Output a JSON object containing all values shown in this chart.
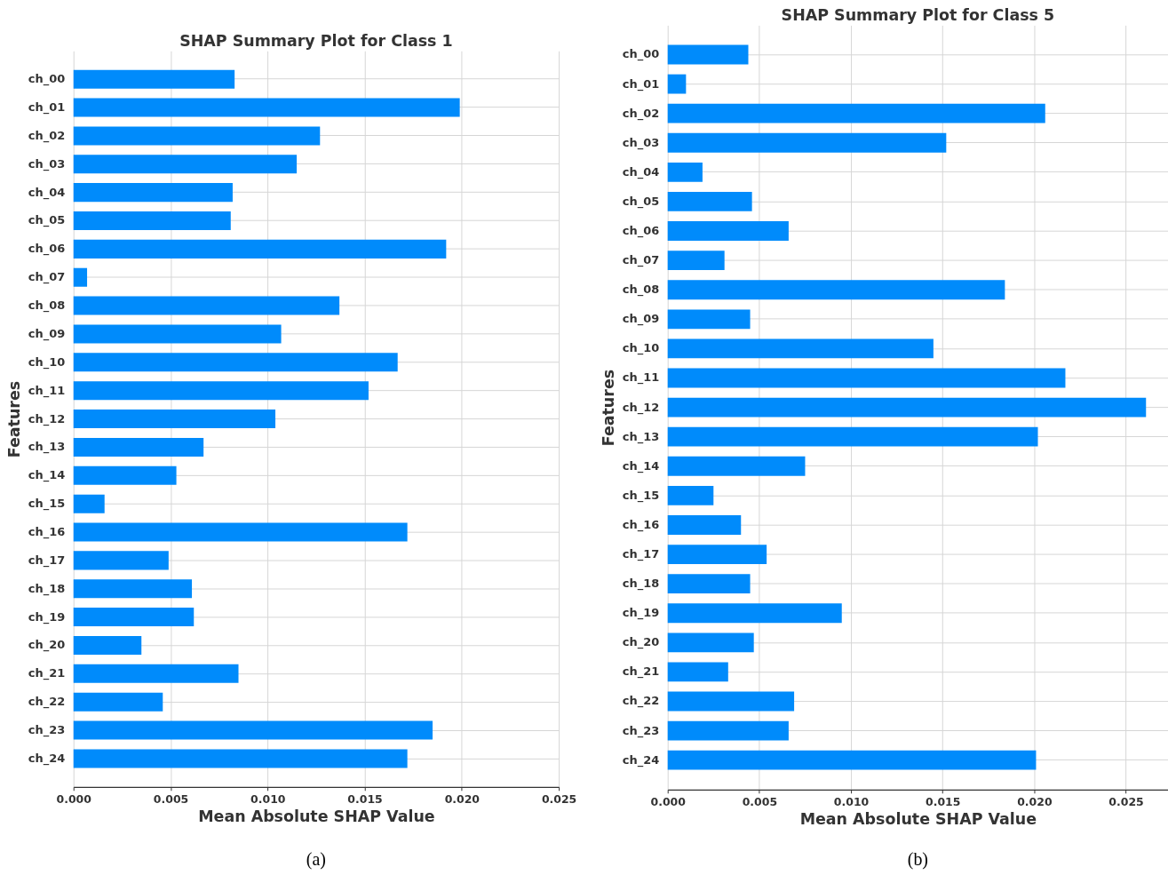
{
  "chart_data": [
    {
      "type": "bar",
      "orientation": "horizontal",
      "title": "SHAP Summary Plot for Class 1",
      "xlabel": "Mean Absolute SHAP Value",
      "ylabel": "Features",
      "categories": [
        "ch_00",
        "ch_01",
        "ch_02",
        "ch_03",
        "ch_04",
        "ch_05",
        "ch_06",
        "ch_07",
        "ch_08",
        "ch_09",
        "ch_10",
        "ch_11",
        "ch_12",
        "ch_13",
        "ch_14",
        "ch_15",
        "ch_16",
        "ch_17",
        "ch_18",
        "ch_19",
        "ch_20",
        "ch_21",
        "ch_22",
        "ch_23",
        "ch_24"
      ],
      "values": [
        0.0083,
        0.0199,
        0.0127,
        0.0115,
        0.0082,
        0.0081,
        0.0192,
        0.0007,
        0.0137,
        0.0107,
        0.0167,
        0.0152,
        0.0104,
        0.0067,
        0.0053,
        0.0016,
        0.0172,
        0.0049,
        0.0061,
        0.0062,
        0.0035,
        0.0085,
        0.0046,
        0.0185,
        0.0172
      ],
      "color": "#008bfb",
      "xlim": [
        0,
        0.025
      ],
      "xticks": [
        {
          "value": 0,
          "label": "0.000"
        },
        0.005,
        {
          "value": 0.01,
          "label": "0.010"
        },
        0.015,
        {
          "value": 0.02,
          "label": "0.020"
        },
        0.025
      ],
      "grid": true,
      "annotations": [
        "(a)"
      ]
    },
    {
      "type": "bar",
      "orientation": "horizontal",
      "title": "SHAP Summary Plot for Class 5",
      "xlabel": "Mean Absolute SHAP Value",
      "ylabel": "Features",
      "categories": [
        "ch_00",
        "ch_01",
        "ch_02",
        "ch_03",
        "ch_04",
        "ch_05",
        "ch_06",
        "ch_07",
        "ch_08",
        "ch_09",
        "ch_10",
        "ch_11",
        "ch_12",
        "ch_13",
        "ch_14",
        "ch_15",
        "ch_16",
        "ch_17",
        "ch_18",
        "ch_19",
        "ch_20",
        "ch_21",
        "ch_22",
        "ch_23",
        "ch_24"
      ],
      "values": [
        0.0044,
        0.001,
        0.0206,
        0.0152,
        0.0019,
        0.0046,
        0.0066,
        0.0031,
        0.0184,
        0.0045,
        0.0145,
        0.0217,
        0.0261,
        0.0202,
        0.0075,
        0.0025,
        0.004,
        0.0054,
        0.0045,
        0.0095,
        0.0047,
        0.0033,
        0.0069,
        0.0066,
        0.0201
      ],
      "color": "#008bfb",
      "xlim": [
        0,
        0.0273
      ],
      "xticks": [
        {
          "value": 0,
          "label": "0.000"
        },
        0.005,
        {
          "value": 0.01,
          "label": "0.010"
        },
        0.015,
        {
          "value": 0.02,
          "label": "0.020"
        },
        0.025
      ],
      "grid": true,
      "annotations": [
        "(b)"
      ]
    }
  ]
}
